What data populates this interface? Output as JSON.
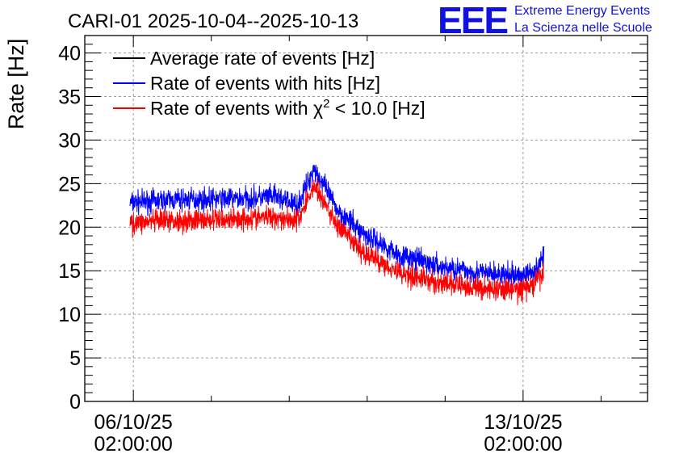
{
  "chart_data": {
    "type": "line",
    "title": "CARI-01 2025-10-04--2025-10-13",
    "ylabel": "Rate [Hz]",
    "xlabel": "",
    "ylim": [
      0,
      42
    ],
    "yticks": [
      0,
      5,
      10,
      15,
      20,
      25,
      30,
      35,
      40
    ],
    "x_unit": "days since 2025-10-04 00:00",
    "xlim": [
      1.46,
      8.68
    ],
    "xticks": [
      {
        "x": 2.0833,
        "line1": "06/10/25",
        "line2": "02:00:00"
      },
      {
        "x": 7.0833,
        "line1": "13/10/25",
        "line2": "02:00:00"
      }
    ],
    "grid": true,
    "legend_position": "top-left",
    "series": [
      {
        "name": "Average rate of events [Hz]",
        "color": "#000000",
        "noise": 0,
        "x": [],
        "y": []
      },
      {
        "name": "Rate of events with hits [Hz]",
        "color": "#0000ff",
        "noise": 1.1,
        "x": [
          2.04,
          2.5,
          3.0,
          3.5,
          3.9,
          4.2,
          4.4,
          4.7,
          5.0,
          5.5,
          6.0,
          6.5,
          7.0,
          7.2,
          7.35
        ],
        "y": [
          22.8,
          23.1,
          23.2,
          23.3,
          23.5,
          22.5,
          26.8,
          22.0,
          19.5,
          16.8,
          15.5,
          14.8,
          14.4,
          14.8,
          16.5
        ]
      },
      {
        "name": "Rate of events with χ² < 10.0 [Hz]",
        "color": "#ff0000",
        "noise": 1.1,
        "x": [
          2.04,
          2.5,
          3.0,
          3.5,
          3.9,
          4.2,
          4.4,
          4.7,
          5.0,
          5.5,
          6.0,
          6.5,
          7.0,
          7.2,
          7.35
        ],
        "y": [
          20.5,
          20.7,
          20.8,
          21.0,
          21.2,
          20.8,
          24.8,
          20.2,
          17.3,
          14.8,
          13.6,
          13.0,
          12.8,
          13.2,
          14.8
        ]
      }
    ]
  },
  "legend": {
    "items": [
      {
        "label": "Average rate of events [Hz]",
        "color": "#000000"
      },
      {
        "label": "Rate of events with hits [Hz]",
        "color": "#0000ff"
      },
      {
        "label_pre": "Rate of events with ",
        "chi": "χ",
        "sup": "2",
        "label_post": " < 10.0 [Hz]",
        "color": "#ff0000"
      }
    ]
  },
  "logo": {
    "mark": "EEE",
    "line1": "Extreme Energy Events",
    "line2": "La Scienza nelle Scuole",
    "color": "#1010e0"
  }
}
